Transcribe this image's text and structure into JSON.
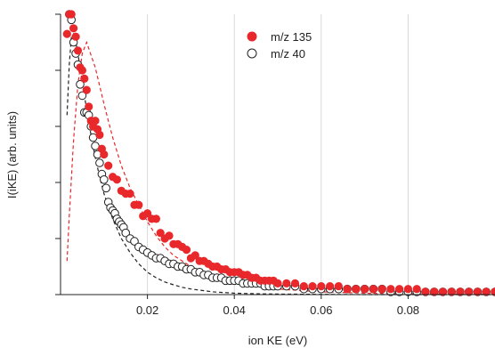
{
  "chart_data": {
    "type": "scatter",
    "xlabel": "ion KE (eV)",
    "ylabel": "I(iKE) (arb. units)",
    "xlim": [
      0,
      0.1
    ],
    "ylim": [
      0,
      1
    ],
    "x_ticks": [
      0.02,
      0.04,
      0.06,
      0.08
    ],
    "x_tick_labels": [
      "0.02",
      "0.04",
      "0.06",
      "0.08"
    ],
    "y_ticks": [
      0,
      0.2,
      0.4,
      0.6,
      0.8,
      1.0
    ],
    "grid": "vertical",
    "legend_position": "top-center",
    "series": [
      {
        "name": "m/z 135",
        "marker": "filled-circle",
        "color": "#e8282b",
        "x": [
          0.0015,
          0.002,
          0.0025,
          0.003,
          0.0035,
          0.004,
          0.0045,
          0.005,
          0.0055,
          0.006,
          0.0065,
          0.007,
          0.0075,
          0.008,
          0.0085,
          0.009,
          0.0095,
          0.01,
          0.011,
          0.012,
          0.013,
          0.014,
          0.015,
          0.016,
          0.017,
          0.018,
          0.019,
          0.02,
          0.021,
          0.022,
          0.023,
          0.024,
          0.025,
          0.026,
          0.027,
          0.028,
          0.029,
          0.03,
          0.031,
          0.032,
          0.033,
          0.034,
          0.035,
          0.036,
          0.037,
          0.038,
          0.039,
          0.04,
          0.041,
          0.042,
          0.043,
          0.044,
          0.045,
          0.046,
          0.047,
          0.048,
          0.049,
          0.05,
          0.052,
          0.054,
          0.056,
          0.058,
          0.06,
          0.062,
          0.064,
          0.066,
          0.068,
          0.07,
          0.072,
          0.074,
          0.076,
          0.078,
          0.08,
          0.082,
          0.084,
          0.086,
          0.088,
          0.09,
          0.092,
          0.094,
          0.096,
          0.098,
          0.1
        ],
        "values": [
          0.93,
          1.0,
          1.0,
          0.95,
          0.92,
          0.87,
          0.81,
          0.8,
          0.77,
          0.73,
          0.67,
          0.62,
          0.6,
          0.62,
          0.59,
          0.57,
          0.52,
          0.5,
          0.46,
          0.42,
          0.41,
          0.37,
          0.36,
          0.36,
          0.32,
          0.32,
          0.28,
          0.29,
          0.27,
          0.27,
          0.22,
          0.2,
          0.21,
          0.18,
          0.18,
          0.17,
          0.16,
          0.13,
          0.14,
          0.12,
          0.12,
          0.11,
          0.1,
          0.1,
          0.09,
          0.09,
          0.08,
          0.08,
          0.08,
          0.07,
          0.07,
          0.06,
          0.06,
          0.05,
          0.05,
          0.05,
          0.05,
          0.04,
          0.04,
          0.04,
          0.03,
          0.03,
          0.03,
          0.03,
          0.03,
          0.02,
          0.02,
          0.02,
          0.02,
          0.02,
          0.02,
          0.02,
          0.02,
          0.02,
          0.01,
          0.01,
          0.01,
          0.01,
          0.01,
          0.01,
          0.01,
          0.01,
          0.01
        ]
      },
      {
        "name": "m/z 40",
        "marker": "open-circle",
        "color": "#222222",
        "x": [
          0.002,
          0.0025,
          0.003,
          0.0035,
          0.004,
          0.0045,
          0.005,
          0.0055,
          0.006,
          0.0065,
          0.007,
          0.0075,
          0.008,
          0.0085,
          0.009,
          0.0095,
          0.01,
          0.0105,
          0.011,
          0.0115,
          0.012,
          0.0125,
          0.013,
          0.0135,
          0.014,
          0.0145,
          0.015,
          0.016,
          0.017,
          0.018,
          0.019,
          0.02,
          0.021,
          0.022,
          0.023,
          0.024,
          0.025,
          0.026,
          0.027,
          0.028,
          0.029,
          0.03,
          0.031,
          0.032,
          0.033,
          0.034,
          0.035,
          0.036,
          0.037,
          0.038,
          0.039,
          0.04,
          0.041,
          0.042,
          0.043,
          0.044,
          0.045,
          0.046,
          0.047,
          0.048,
          0.049,
          0.05,
          0.052,
          0.054,
          0.056,
          0.058,
          0.06,
          0.062,
          0.064,
          0.066,
          0.068,
          0.07,
          0.072,
          0.074,
          0.076,
          0.078,
          0.08,
          0.082,
          0.084,
          0.086,
          0.088,
          0.09,
          0.092,
          0.094,
          0.096,
          0.098,
          0.1
        ],
        "values": [
          1.0,
          0.98,
          0.9,
          0.86,
          0.82,
          0.75,
          0.71,
          0.65,
          0.65,
          0.64,
          0.6,
          0.56,
          0.53,
          0.5,
          0.47,
          0.43,
          0.41,
          0.38,
          0.33,
          0.31,
          0.3,
          0.29,
          0.27,
          0.26,
          0.25,
          0.24,
          0.22,
          0.2,
          0.19,
          0.17,
          0.16,
          0.15,
          0.14,
          0.13,
          0.13,
          0.12,
          0.11,
          0.11,
          0.1,
          0.1,
          0.09,
          0.09,
          0.08,
          0.08,
          0.07,
          0.07,
          0.06,
          0.06,
          0.06,
          0.05,
          0.05,
          0.05,
          0.05,
          0.04,
          0.04,
          0.04,
          0.04,
          0.04,
          0.03,
          0.03,
          0.03,
          0.03,
          0.03,
          0.03,
          0.02,
          0.02,
          0.02,
          0.02,
          0.02,
          0.02,
          0.02,
          0.02,
          0.02,
          0.02,
          0.01,
          0.01,
          0.01,
          0.01,
          0.01,
          0.01,
          0.01,
          0.01,
          0.01,
          0.01,
          0.01,
          0.01,
          0.01
        ]
      }
    ],
    "fits": [
      {
        "for_series": "m/z 135",
        "style": "dashed",
        "color": "#e8282b",
        "x": [
          0.0015,
          0.002,
          0.003,
          0.004,
          0.005,
          0.006,
          0.008,
          0.01,
          0.012,
          0.014,
          0.016,
          0.018,
          0.02,
          0.022,
          0.024,
          0.026,
          0.028,
          0.03,
          0.032,
          0.034,
          0.036,
          0.04,
          0.045,
          0.05,
          0.06,
          0.07,
          0.08,
          0.09,
          0.1
        ],
        "values": [
          0.12,
          0.28,
          0.55,
          0.75,
          0.86,
          0.9,
          0.81,
          0.68,
          0.56,
          0.46,
          0.38,
          0.32,
          0.26,
          0.21,
          0.17,
          0.14,
          0.12,
          0.1,
          0.08,
          0.07,
          0.06,
          0.04,
          0.03,
          0.02,
          0.01,
          0.005,
          0.003,
          0.002,
          0.001
        ]
      },
      {
        "for_series": "m/z 40",
        "style": "dashed",
        "color": "#222222",
        "x": [
          0.0015,
          0.002,
          0.0025,
          0.003,
          0.0035,
          0.004,
          0.005,
          0.006,
          0.007,
          0.008,
          0.009,
          0.01,
          0.012,
          0.014,
          0.016,
          0.018,
          0.02,
          0.022,
          0.024,
          0.026,
          0.028,
          0.03,
          0.035,
          0.04,
          0.045,
          0.05,
          0.06,
          0.07,
          0.08,
          0.09,
          0.1
        ],
        "values": [
          0.64,
          0.82,
          0.92,
          0.93,
          0.9,
          0.86,
          0.76,
          0.66,
          0.57,
          0.49,
          0.42,
          0.36,
          0.27,
          0.2,
          0.15,
          0.11,
          0.08,
          0.06,
          0.045,
          0.035,
          0.026,
          0.02,
          0.01,
          0.005,
          0.003,
          0.002,
          0.001,
          0.0,
          0.0,
          0.0,
          0.0
        ]
      }
    ]
  }
}
